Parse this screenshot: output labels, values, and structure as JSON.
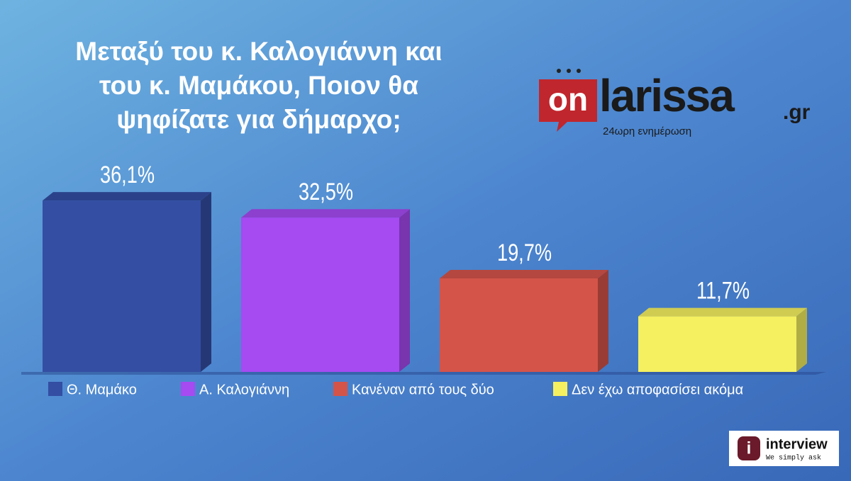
{
  "chart_data": {
    "type": "bar3d",
    "title": [
      "Μεταξύ του κ. Καλογιάννη και",
      "του κ. Μαμάκου, Ποιον θα",
      "ψηφίζατε για δήμαρχο;"
    ],
    "categories": [
      "Θ. Μαμάκο",
      "Α. Καλογιάννη",
      "Κανέναν από τους δύο",
      "Δεν έχω αποφασίσει ακόμα"
    ],
    "values": [
      36.1,
      32.5,
      19.7,
      11.7
    ],
    "value_labels": [
      "36,1%",
      "32,5%",
      "19,7%",
      "11,7%"
    ],
    "colors": [
      "#334ea3",
      "#a64af2",
      "#d4544a",
      "#f5f060"
    ],
    "ylim": [
      0,
      40
    ]
  },
  "branding": {
    "site_prefix": "on",
    "site_name": "larissa",
    "site_suffix": ".gr",
    "site_tagline": "24ωρη ενημέρωση",
    "pollster": "interview",
    "pollster_slogan": "We simply ask"
  }
}
